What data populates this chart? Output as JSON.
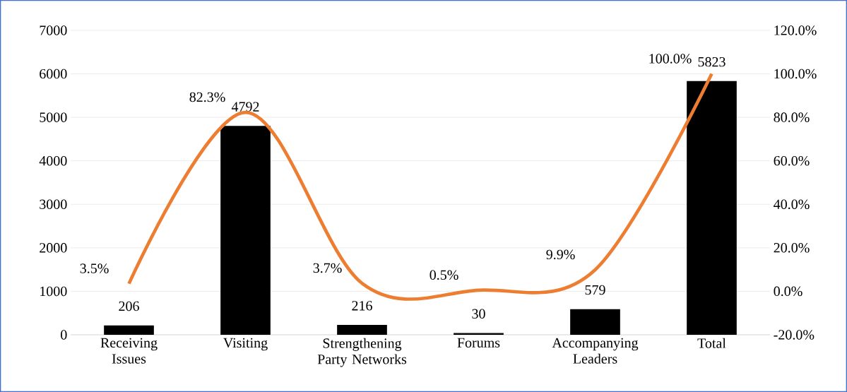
{
  "chart_data": {
    "type": "bar",
    "categories": [
      "Receiving Issues",
      "Visiting",
      "Strengthening Party Networks",
      "Forums",
      "Accompanying Leaders",
      "Total"
    ],
    "series": [
      {
        "color": "#000000",
        "values": [
          206,
          4792,
          216,
          30,
          579,
          5823
        ]
      },
      {
        "type": "line",
        "axis": "y2",
        "color": "#ed7d31",
        "values": [
          3.5,
          82.3,
          3.7,
          0.5,
          9.9,
          100.0
        ],
        "value_labels": [
          "3.5%",
          "82.3%",
          "3.7%",
          "0.5%",
          "9.9%",
          "100.0%"
        ]
      }
    ],
    "data_labels": true,
    "ylim": [
      0,
      7000
    ],
    "yticks": [
      0,
      1000,
      2000,
      3000,
      4000,
      5000,
      6000,
      7000
    ],
    "y2lim": [
      -20,
      120
    ],
    "y2ticks": [
      {
        "value": -20,
        "label": "-20.0%"
      },
      {
        "value": 0,
        "label": "0.0%"
      },
      {
        "value": 20,
        "label": "20.0%"
      },
      {
        "value": 40,
        "label": "40.0%"
      },
      {
        "value": 60,
        "label": "60.0%"
      },
      {
        "value": 80,
        "label": "80.0%"
      },
      {
        "value": 100,
        "label": "100.0%"
      },
      {
        "value": 120,
        "label": "120.0%"
      }
    ],
    "grid": "y",
    "marker": "none",
    "line_style": "solid"
  }
}
